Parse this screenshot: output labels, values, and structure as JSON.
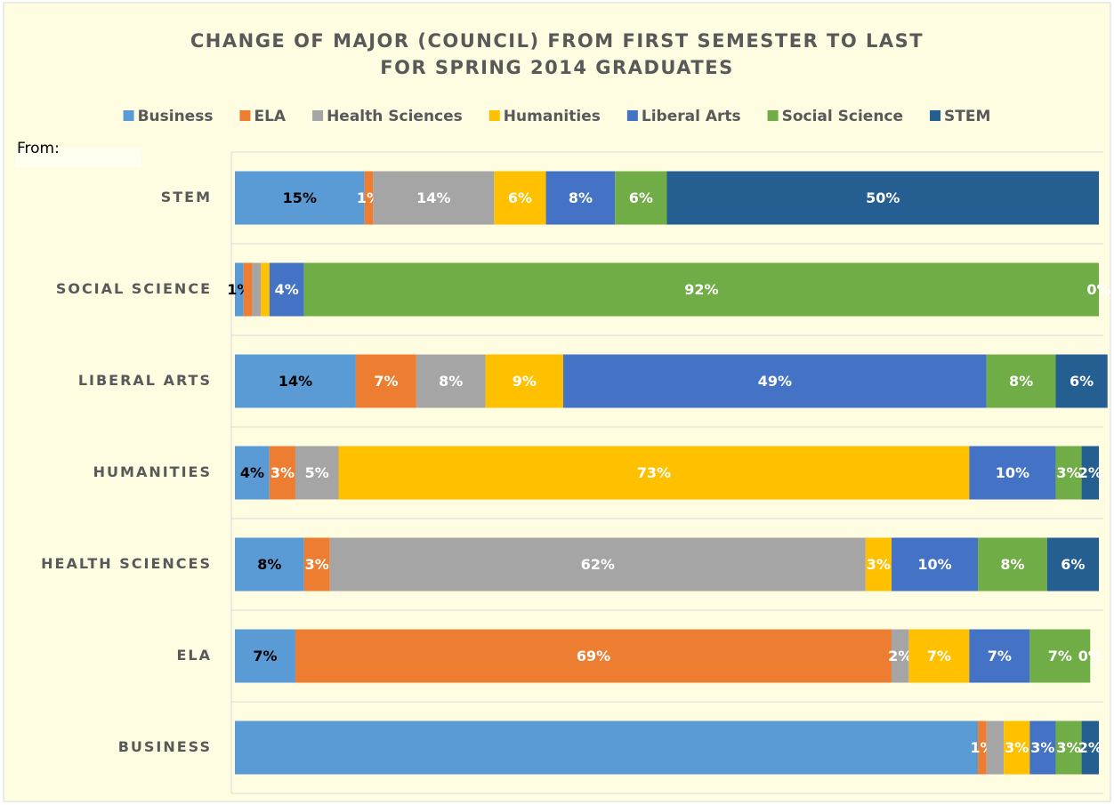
{
  "chart_data": {
    "type": "stacked_bar_horizontal",
    "title": [
      "CHANGE OF MAJOR (COUNCIL) FROM FIRST SEMESTER TO LAST",
      "FOR SPRING 2014 GRADUATES"
    ],
    "annotation": "From:",
    "categories": [
      "BUSINESS",
      "ELA",
      "HEALTH SCIENCES",
      "HUMANITIES",
      "LIBERAL ARTS",
      "SOCIAL SCIENCE",
      "STEM"
    ],
    "xlim": [
      0,
      100
    ],
    "series": [
      {
        "name": "Business",
        "color": "#5b9bd5",
        "values": [
          86,
          7,
          8,
          4,
          14,
          1,
          15
        ],
        "value_labels": [
          null,
          "7%",
          "8%",
          "4%",
          "14%",
          "1%",
          "15%"
        ]
      },
      {
        "name": "ELA",
        "color": "#ed7d31",
        "values": [
          1,
          69,
          3,
          3,
          7,
          1,
          1
        ],
        "value_labels": [
          "1%",
          "69%",
          "3%",
          "3%",
          "7%",
          null,
          "1%"
        ]
      },
      {
        "name": "Health Sciences",
        "color": "#a5a5a5",
        "values": [
          2,
          2,
          62,
          5,
          8,
          1,
          14
        ],
        "value_labels": [
          null,
          "2%",
          "62%",
          "5%",
          "8%",
          null,
          "14%"
        ]
      },
      {
        "name": "Humanities",
        "color": "#ffc000",
        "values": [
          3,
          7,
          3,
          73,
          9,
          1,
          6
        ],
        "value_labels": [
          "3%",
          "7%",
          "3%",
          "73%",
          "9%",
          null,
          "6%"
        ]
      },
      {
        "name": "Liberal Arts",
        "color": "#4472c4",
        "values": [
          3,
          7,
          10,
          10,
          49,
          4,
          8
        ],
        "value_labels": [
          "3%",
          "7%",
          "10%",
          "10%",
          "49%",
          "4%",
          "8%"
        ]
      },
      {
        "name": "Social Science",
        "color": "#70ad47",
        "values": [
          3,
          7,
          8,
          3,
          8,
          92,
          6
        ],
        "value_labels": [
          "3%",
          "7%",
          "8%",
          "3%",
          "8%",
          "92%",
          "6%"
        ]
      },
      {
        "name": "STEM",
        "color": "#255e91",
        "values": [
          2,
          0,
          6,
          2,
          6,
          0,
          50
        ],
        "value_labels": [
          "2%",
          "0%",
          "6%",
          "2%",
          "6%",
          "0%",
          "50%"
        ]
      }
    ]
  }
}
